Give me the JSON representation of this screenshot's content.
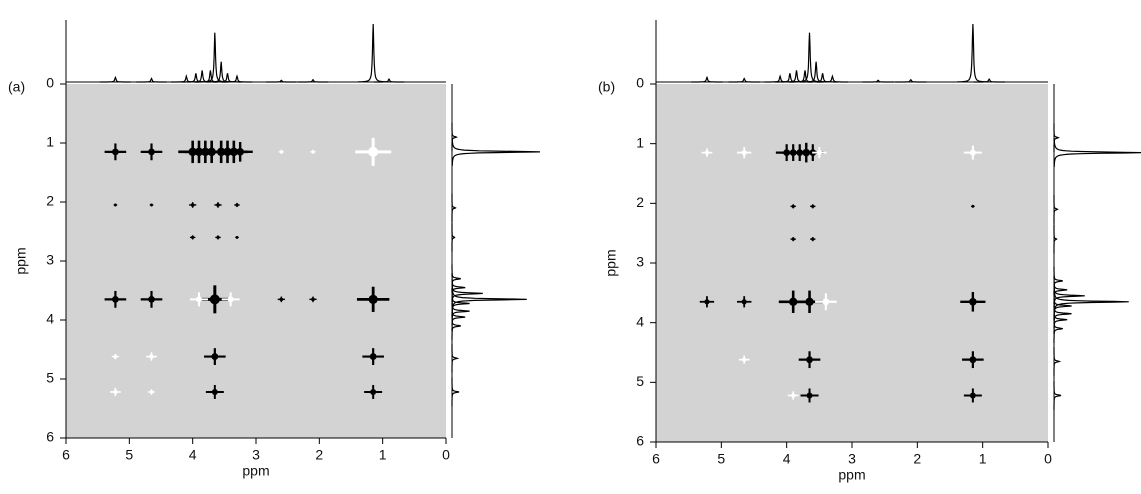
{
  "chart_data": [
    {
      "type": "correlation-map",
      "label": "(a)",
      "xlabel": "ppm",
      "ylabel": "ppm",
      "xlim": [
        6,
        0
      ],
      "ylim": [
        6,
        0
      ],
      "xticks": [
        6,
        5,
        4,
        3,
        2,
        1,
        0
      ],
      "yticks": [
        0,
        1,
        2,
        3,
        4,
        5,
        6
      ],
      "spectrum": {
        "x": [
          5.22,
          4.65,
          4.1,
          3.95,
          3.85,
          3.72,
          3.65,
          3.55,
          3.45,
          3.3,
          2.6,
          2.1,
          1.15,
          0.9
        ],
        "values": [
          0.08,
          0.06,
          0.1,
          0.15,
          0.2,
          0.2,
          0.85,
          0.35,
          0.15,
          0.1,
          0.03,
          0.04,
          1.0,
          0.05
        ]
      },
      "cross_peaks": {
        "x": [
          5.22,
          4.65,
          4.0,
          3.9,
          3.8,
          3.7,
          3.55,
          3.45,
          3.35,
          3.25,
          2.6,
          2.1,
          1.15,
          4.0,
          3.6,
          3.3,
          5.22,
          4.65,
          4.0,
          3.6,
          3.3,
          5.22,
          4.65,
          3.65,
          3.9,
          3.4,
          2.6,
          2.1,
          1.15,
          4.65,
          3.65,
          1.15,
          5.22,
          5.22,
          3.65,
          1.15,
          4.65
        ],
        "y": [
          1.15,
          1.15,
          1.15,
          1.15,
          1.15,
          1.15,
          1.15,
          1.15,
          1.15,
          1.15,
          1.15,
          1.15,
          1.15,
          2.05,
          2.05,
          2.05,
          2.05,
          2.05,
          2.6,
          2.6,
          2.6,
          3.65,
          3.65,
          3.65,
          3.65,
          3.65,
          3.65,
          3.65,
          3.65,
          4.62,
          4.62,
          4.62,
          4.62,
          5.22,
          5.22,
          5.22,
          5.22
        ],
        "values": [
          0.6,
          0.6,
          0.8,
          0.8,
          0.8,
          0.8,
          0.8,
          0.8,
          0.8,
          0.7,
          -0.15,
          -0.15,
          -1,
          0.2,
          0.2,
          0.15,
          0.1,
          0.1,
          0.15,
          0.15,
          0.1,
          0.6,
          0.6,
          1,
          -0.5,
          -0.5,
          0.2,
          0.2,
          0.9,
          -0.3,
          0.6,
          0.6,
          -0.2,
          -0.3,
          0.5,
          0.5,
          -0.2
        ]
      }
    },
    {
      "type": "correlation-map",
      "label": "(b)",
      "xlabel": "ppm",
      "ylabel": "ppm",
      "xlim": [
        6,
        0
      ],
      "ylim": [
        6,
        0
      ],
      "xticks": [
        6,
        5,
        4,
        3,
        2,
        1,
        0
      ],
      "yticks": [
        0,
        1,
        2,
        3,
        4,
        5,
        6
      ],
      "spectrum": {
        "x": [
          5.22,
          4.65,
          4.1,
          3.95,
          3.85,
          3.72,
          3.65,
          3.55,
          3.45,
          3.3,
          2.6,
          2.1,
          1.15,
          0.9
        ],
        "values": [
          0.08,
          0.06,
          0.1,
          0.15,
          0.2,
          0.2,
          0.85,
          0.35,
          0.15,
          0.1,
          0.03,
          0.04,
          1.0,
          0.05
        ]
      },
      "cross_peaks": {
        "x": [
          5.22,
          4.65,
          4.0,
          3.9,
          3.8,
          3.7,
          3.6,
          3.5,
          1.15,
          3.9,
          3.6,
          1.15,
          3.9,
          3.6,
          5.22,
          4.65,
          3.9,
          3.65,
          3.4,
          1.15,
          3.65,
          1.15,
          4.65,
          3.65,
          1.15,
          3.9
        ],
        "y": [
          1.15,
          1.15,
          1.15,
          1.15,
          1.15,
          1.15,
          1.15,
          1.15,
          1.15,
          2.05,
          2.05,
          2.05,
          2.6,
          2.6,
          3.65,
          3.65,
          3.65,
          3.65,
          3.65,
          3.65,
          4.62,
          4.62,
          4.62,
          5.22,
          5.22,
          5.22
        ],
        "values": [
          -0.3,
          -0.4,
          0.6,
          0.6,
          0.6,
          0.7,
          0.6,
          -0.4,
          -0.5,
          0.15,
          0.15,
          0.1,
          0.15,
          0.15,
          0.4,
          0.4,
          0.8,
          0.8,
          -0.6,
          0.7,
          0.6,
          0.6,
          -0.3,
          0.5,
          0.5,
          -0.3
        ]
      }
    }
  ]
}
